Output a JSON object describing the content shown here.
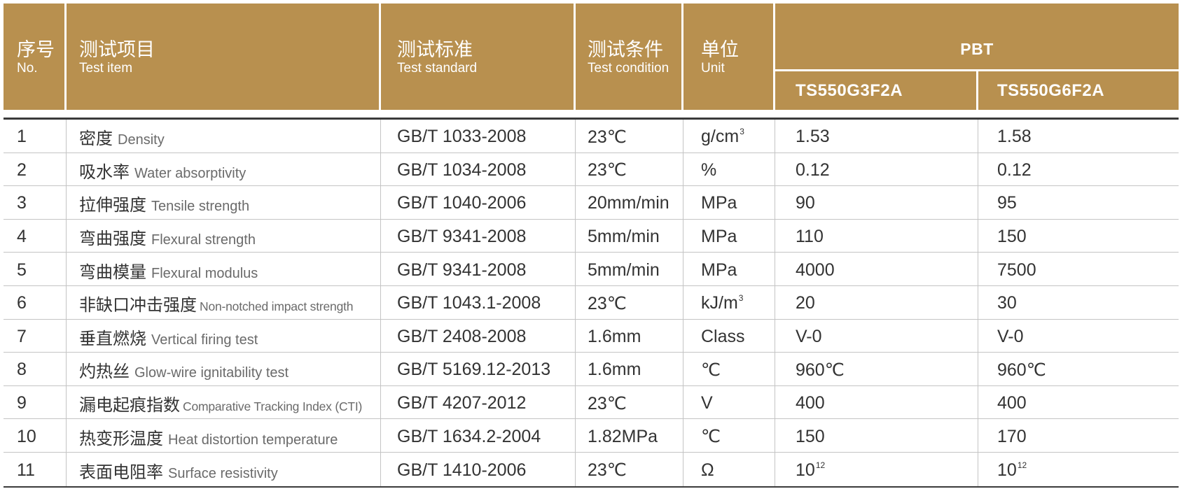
{
  "colors": {
    "header_bg": "#B8904F",
    "header_text": "#FFFFFF",
    "body_text": "#333333",
    "english_text": "#6A6A6A",
    "rule_dark": "#3A3A3A",
    "rule_light": "#C4C4C4"
  },
  "header": {
    "no_zh": "序号",
    "no_en": "No.",
    "item_zh": "测试项目",
    "item_en": "Test item",
    "standard_zh": "测试标准",
    "standard_en": "Test standard",
    "condition_zh": "测试条件",
    "condition_en": "Test condition",
    "unit_zh": "单位",
    "unit_en": "Unit",
    "material": "PBT",
    "grade_1": "TS550G3F2A",
    "grade_2": "TS550G6F2A"
  },
  "rows": [
    {
      "no": "1",
      "item_zh": "密度",
      "item_en": "Density",
      "standard": "GB/T 1033-2008",
      "condition": "23℃",
      "unit": "g/cm",
      "unit_sup": "3",
      "v1": "1.53",
      "v2": "1.58"
    },
    {
      "no": "2",
      "item_zh": "吸水率",
      "item_en": "Water absorptivity",
      "standard": "GB/T 1034-2008",
      "condition": "23℃",
      "unit": "%",
      "v1": "0.12",
      "v2": "0.12"
    },
    {
      "no": "3",
      "item_zh": "拉伸强度",
      "item_en": "Tensile strength",
      "standard": "GB/T 1040-2006",
      "condition": "20mm/min",
      "unit": "MPa",
      "v1": "90",
      "v2": "95"
    },
    {
      "no": "4",
      "item_zh": "弯曲强度",
      "item_en": "Flexural strength",
      "standard": "GB/T 9341-2008",
      "condition": "5mm/min",
      "unit": "MPa",
      "v1": "110",
      "v2": "150"
    },
    {
      "no": "5",
      "item_zh": "弯曲模量",
      "item_en": "Flexural modulus",
      "standard": "GB/T 9341-2008",
      "condition": "5mm/min",
      "unit": "MPa",
      "v1": "4000",
      "v2": "7500"
    },
    {
      "no": "6",
      "item_zh": "非缺口冲击强度",
      "item_en": "Non-notched impact strength",
      "standard": "GB/T 1043.1-2008",
      "condition": "23℃",
      "unit": "kJ/m",
      "unit_sup": "3",
      "v1": "20",
      "v2": "30"
    },
    {
      "no": "7",
      "item_zh": "垂直燃烧",
      "item_en": "Vertical firing test",
      "standard": "GB/T 2408-2008",
      "condition": "1.6mm",
      "unit": "Class",
      "v1": "V-0",
      "v2": "V-0"
    },
    {
      "no": "8",
      "item_zh": "灼热丝",
      "item_en": "Glow-wire ignitability test",
      "standard": "GB/T 5169.12-2013",
      "condition": "1.6mm",
      "unit": "℃",
      "v1": "960℃",
      "v2": "960℃"
    },
    {
      "no": "9",
      "item_zh": "漏电起痕指数",
      "item_en": "Comparative Tracking Index (CTI)",
      "standard": "GB/T 4207-2012",
      "condition": "23℃",
      "unit": "V",
      "v1": "400",
      "v2": "400"
    },
    {
      "no": "10",
      "item_zh": "热变形温度",
      "item_en": "Heat distortion temperature",
      "standard": "GB/T 1634.2-2004",
      "condition": "1.82MPa",
      "unit": "℃",
      "v1": "150",
      "v2": "170"
    },
    {
      "no": "11",
      "item_zh": "表面电阻率",
      "item_en": "Surface resistivity",
      "standard": "GB/T 1410-2006",
      "condition": "23℃",
      "unit": "Ω",
      "v1": "10",
      "v1_sup": "12",
      "v2": "10",
      "v2_sup": "12"
    }
  ]
}
